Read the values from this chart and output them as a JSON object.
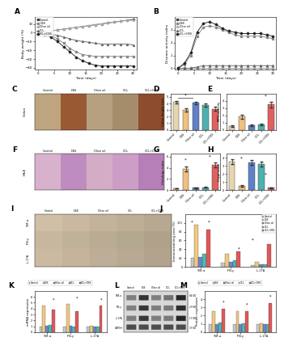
{
  "panel_A": {
    "xlabel": "Time (days)",
    "ylabel": "Body weight (%)",
    "time_points": [
      0,
      2,
      4,
      6,
      8,
      10,
      12,
      14,
      16,
      18,
      20,
      22,
      24,
      26,
      28,
      30
    ],
    "series": {
      "Control": [
        0,
        1,
        2,
        3,
        4,
        5,
        6,
        7,
        8,
        9,
        10,
        11,
        12,
        13,
        14,
        15
      ],
      "DSS": [
        0,
        -1,
        -3,
        -7,
        -12,
        -18,
        -22,
        -25,
        -26,
        -27,
        -27,
        -27,
        -27,
        -27,
        -27,
        -27
      ],
      "Olive oil": [
        0,
        1,
        2,
        3,
        4,
        5,
        6,
        7,
        8,
        9,
        10,
        11,
        12,
        13,
        14,
        14
      ],
      "CCl4": [
        0,
        -1,
        -2,
        -3,
        -5,
        -7,
        -9,
        -10,
        -11,
        -12,
        -13,
        -13,
        -13,
        -13,
        -13,
        -14
      ],
      "CCl4+DSS": [
        0,
        -2,
        -5,
        -10,
        -16,
        -22,
        -28,
        -32,
        -35,
        -37,
        -38,
        -38,
        -38,
        -38,
        -38,
        -38
      ]
    },
    "ylim": [
      -42,
      18
    ],
    "yticks": [
      -40,
      -30,
      -20,
      -10,
      0,
      10
    ],
    "xticks": [
      0,
      2,
      4,
      6,
      8,
      10,
      12,
      14,
      16,
      18,
      20,
      22,
      24,
      26,
      28,
      30
    ]
  },
  "panel_B": {
    "xlabel": "Time (days)",
    "ylabel": "Disease activity index",
    "time_points": [
      0,
      2,
      4,
      6,
      8,
      10,
      12,
      14,
      16,
      18,
      20,
      22,
      24,
      26,
      28,
      30
    ],
    "series": {
      "Control": [
        0,
        0,
        0,
        0,
        0,
        0,
        0,
        0,
        0,
        0,
        0,
        0,
        0,
        0,
        0,
        0
      ],
      "DSS": [
        0,
        0.3,
        1.0,
        2.5,
        3.2,
        3.3,
        3.2,
        3.0,
        2.8,
        2.6,
        2.5,
        2.5,
        2.5,
        2.5,
        2.4,
        2.3
      ],
      "Olive oil": [
        0,
        0,
        0,
        0,
        0,
        0,
        0,
        0,
        0,
        0,
        0,
        0,
        0,
        0,
        0,
        0
      ],
      "CCl4": [
        0,
        0,
        0,
        0.1,
        0.2,
        0.2,
        0.2,
        0.2,
        0.2,
        0.2,
        0.2,
        0.2,
        0.2,
        0.2,
        0.2,
        0.2
      ],
      "CCl4+DSS": [
        0,
        0.4,
        1.2,
        2.8,
        3.5,
        3.6,
        3.4,
        3.1,
        2.9,
        2.8,
        2.7,
        2.7,
        2.7,
        2.7,
        2.6,
        2.5
      ]
    },
    "ylim": [
      -0.1,
      4.0
    ],
    "yticks": [
      0,
      1,
      2,
      3
    ],
    "xticks": [
      0,
      2,
      4,
      6,
      8,
      10,
      12,
      14,
      16,
      18,
      20,
      22,
      24,
      26,
      28,
      30
    ]
  },
  "panel_D": {
    "ylabel": "Colon length (cm)",
    "values": [
      4.2,
      3.0,
      4.1,
      3.8,
      3.2
    ],
    "errors": [
      0.2,
      0.25,
      0.2,
      0.25,
      0.25
    ],
    "ylim": [
      0,
      5.5
    ],
    "yticks": [
      0,
      1,
      2,
      3,
      4,
      5
    ],
    "colors": [
      "#e8d5b0",
      "#f0c080",
      "#6080c8",
      "#50b0b0",
      "#e06060"
    ]
  },
  "panel_E": {
    "ylabel": "MPO activity",
    "values": [
      0.5,
      1.8,
      0.6,
      0.7,
      3.5
    ],
    "errors": [
      0.1,
      0.3,
      0.1,
      0.1,
      0.4
    ],
    "ylim": [
      0,
      5.0
    ],
    "yticks": [
      0,
      1,
      2,
      3,
      4
    ],
    "colors": [
      "#e8d5b0",
      "#f0c080",
      "#6080c8",
      "#50b0b0",
      "#e06060"
    ]
  },
  "panel_G": {
    "ylabel": "Histology score",
    "values": [
      0.3,
      3.8,
      0.4,
      0.5,
      4.5
    ],
    "errors": [
      0.05,
      0.4,
      0.05,
      0.1,
      0.4
    ],
    "ylim": [
      0,
      6.5
    ],
    "yticks": [
      0,
      2,
      4,
      6
    ],
    "colors": [
      "#e8d5b0",
      "#f0c080",
      "#6080c8",
      "#50b0b0",
      "#e06060"
    ]
  },
  "panel_H": {
    "ylabel": "Crypt score",
    "values": [
      3.5,
      0.5,
      3.4,
      3.2,
      0.3
    ],
    "errors": [
      0.3,
      0.1,
      0.3,
      0.3,
      0.05
    ],
    "ylim": [
      0,
      4.5
    ],
    "yticks": [
      0,
      1,
      2,
      3,
      4
    ],
    "colors": [
      "#e8d5b0",
      "#f0c080",
      "#6080c8",
      "#50b0b0",
      "#e06060"
    ]
  },
  "panel_J": {
    "ylabel": "Immunostaining area (%)",
    "groups": [
      "TNF-α",
      "IFN-γ",
      "IL-17A"
    ],
    "series_names": [
      "Control",
      "DSS",
      "Olive oil",
      "CCl₄",
      "CCl₄+DSS"
    ],
    "values": {
      "TNF-α": [
        20,
        95,
        22,
        30,
        85
      ],
      "IFN-γ": [
        10,
        30,
        12,
        15,
        35
      ],
      "IL-17A": [
        3,
        12,
        5,
        5,
        52
      ]
    },
    "ylim": [
      0,
      120
    ],
    "yticks": [
      0,
      20,
      40,
      60,
      80,
      100
    ],
    "colors": [
      "#c8c8c8",
      "#f0c880",
      "#6888cc",
      "#50b8b0",
      "#e05858"
    ]
  },
  "panel_K": {
    "ylabel": "mRNA expression",
    "groups": [
      "TNF-α",
      "IFN-γ",
      "IL-17A"
    ],
    "series_names": [
      "Control",
      "DSS",
      "Olive oil",
      "CCl₄",
      "CCl₄+DSS"
    ],
    "values": {
      "TNF-α": [
        1.0,
        4.5,
        1.1,
        1.2,
        3.8
      ],
      "IFN-γ": [
        1.0,
        4.8,
        1.1,
        1.0,
        3.5
      ],
      "IL-17A": [
        1.0,
        1.1,
        1.0,
        1.0,
        4.5
      ]
    },
    "ylim": [
      0,
      7.0
    ],
    "yticks": [
      0,
      1,
      2,
      3,
      4,
      5,
      6
    ],
    "colors": [
      "#c8c8c8",
      "#f0c880",
      "#6888cc",
      "#50b8b0",
      "#e05858"
    ]
  },
  "panel_M": {
    "ylabel": "Protein expression",
    "groups": [
      "TNF-α",
      "IFN-γ",
      "IL-17A"
    ],
    "series_names": [
      "Control",
      "DSS",
      "Olive oil",
      "CCl₄",
      "CCl₄+DSS"
    ],
    "values": {
      "TNF-α": [
        1.0,
        2.5,
        1.0,
        1.2,
        2.8
      ],
      "IFN-γ": [
        1.0,
        2.5,
        1.0,
        1.1,
        2.5
      ],
      "IL-17A": [
        1.0,
        1.1,
        1.0,
        1.0,
        3.5
      ]
    },
    "ylim": [
      0,
      5.0
    ],
    "yticks": [
      0,
      1,
      2,
      3,
      4
    ],
    "colors": [
      "#c8c8c8",
      "#f0c880",
      "#6888cc",
      "#50b8b0",
      "#e05858"
    ]
  },
  "line_colors": [
    "#444444",
    "#888888",
    "#aaaaaa",
    "#666666",
    "#222222"
  ],
  "line_markers": [
    "s",
    "s",
    "o",
    "^",
    "D"
  ],
  "legend_labels": [
    "Control",
    "DSS",
    "Olive oil",
    "CCl₄",
    "CCl₄+DSS"
  ],
  "bar_xlabels": [
    "Control",
    "DSS",
    "Olive oil",
    "CCl₄",
    "CCl₄+DSS"
  ],
  "background_color": "#ffffff"
}
